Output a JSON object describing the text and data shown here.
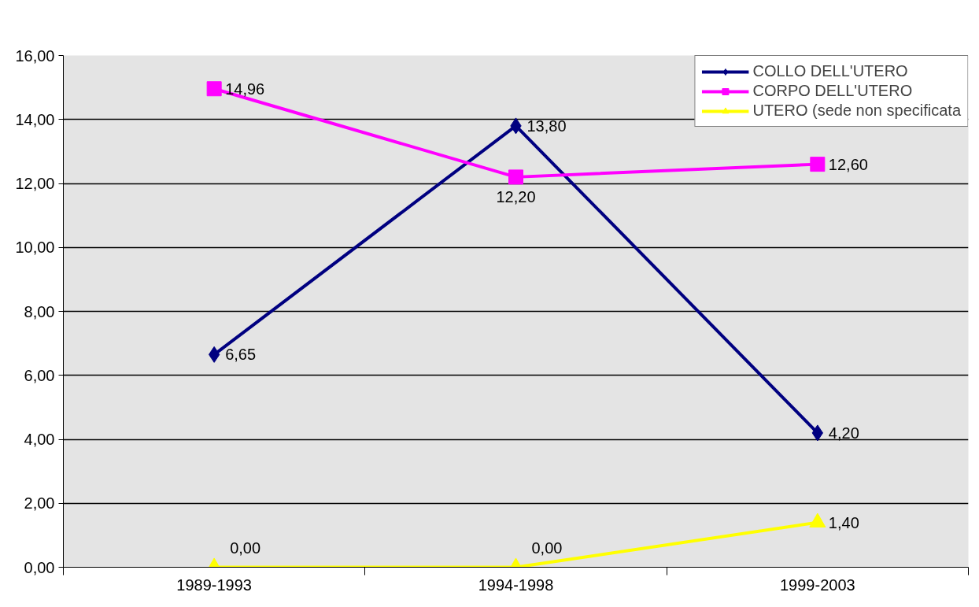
{
  "chart_data": {
    "type": "line",
    "categories": [
      "1989-1993",
      "1994-1998",
      "1999-2003"
    ],
    "ylim": [
      0,
      16
    ],
    "yticks": [
      {
        "value": 0,
        "label": "0,00"
      },
      {
        "value": 2,
        "label": "2,00"
      },
      {
        "value": 4,
        "label": "4,00"
      },
      {
        "value": 6,
        "label": "6,00"
      },
      {
        "value": 8,
        "label": "8,00"
      },
      {
        "value": 10,
        "label": "10,00"
      },
      {
        "value": 12,
        "label": "12,00"
      },
      {
        "value": 14,
        "label": "14,00"
      },
      {
        "value": 16,
        "label": "16,00"
      }
    ],
    "grid": "y",
    "legend": "top right",
    "series": [
      {
        "name": "COLLO DELL'UTERO",
        "color": "#000080",
        "marker": "diamond",
        "values": [
          6.65,
          13.8,
          4.2
        ],
        "value_labels": [
          "6,65",
          "13,80",
          "4,20"
        ]
      },
      {
        "name": "CORPO DELL'UTERO",
        "color": "#ff00ff",
        "marker": "square",
        "values": [
          14.96,
          12.2,
          12.6
        ],
        "value_labels": [
          "14,96",
          "12,20",
          "12,60"
        ]
      },
      {
        "name": "UTERO (sede non specificata",
        "color": "#ffff00",
        "marker": "triangle",
        "values": [
          0,
          0,
          1.4
        ],
        "value_labels": [
          "0,00",
          "0,00",
          "1,40"
        ]
      }
    ]
  }
}
